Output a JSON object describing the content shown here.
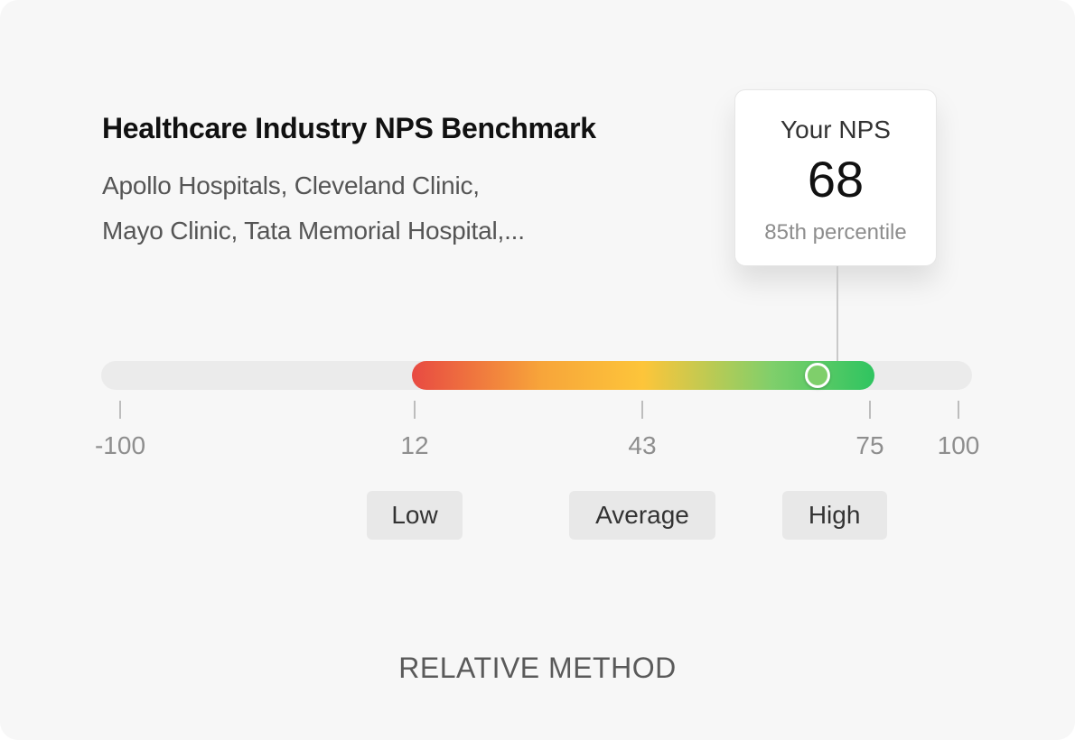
{
  "header": {
    "title": "Healthcare Industry NPS Benchmark",
    "companies_line1": "Apollo Hospitals, Cleveland Clinic,",
    "companies_line2": "Mayo Clinic, Tata Memorial Hospital,..."
  },
  "score_card": {
    "label": "Your NPS",
    "value": "68",
    "percentile": "85th percentile"
  },
  "scale": {
    "min": -100,
    "max": 100,
    "range_start": 12,
    "range_end": 75,
    "your_score": 68,
    "ticks": [
      {
        "value": -100,
        "label": "-100"
      },
      {
        "value": 12,
        "label": "12"
      },
      {
        "value": 43,
        "label": "43"
      },
      {
        "value": 75,
        "label": "75"
      },
      {
        "value": 100,
        "label": "100"
      }
    ],
    "zones": [
      {
        "label": "Low",
        "center": 12
      },
      {
        "label": "Average",
        "center": 43
      },
      {
        "label": "High",
        "center": 70
      }
    ],
    "colors": {
      "low": "#e84a42",
      "mid": "#f7a53a",
      "average": "#fdc53a",
      "high": "#2fc460",
      "marker": "#7fcf6b",
      "track": "#ebebeb"
    }
  },
  "footer": {
    "method": "RELATIVE METHOD"
  }
}
